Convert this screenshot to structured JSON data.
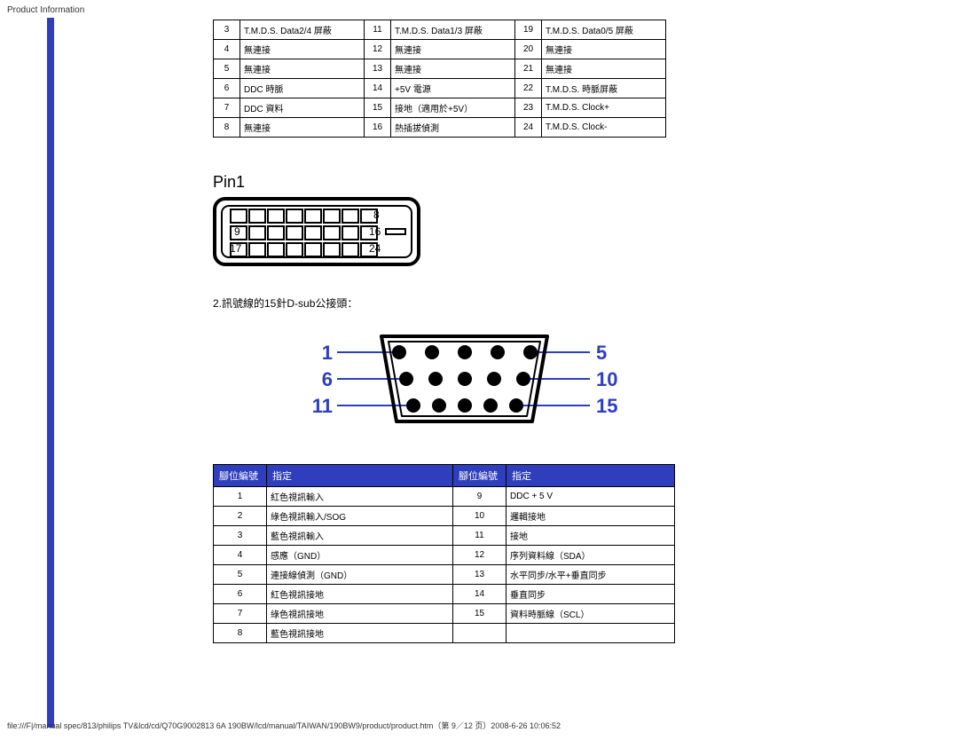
{
  "header": {
    "title": "Product Information"
  },
  "dvi_table": {
    "rows": [
      {
        "a": "3",
        "b": "T.M.D.S. Data2/4 屏蔽",
        "c": "11",
        "d": "T.M.D.S. Data1/3 屏蔽",
        "e": "19",
        "f": "T.M.D.S. Data0/5 屏蔽"
      },
      {
        "a": "4",
        "b": "無連接",
        "c": "12",
        "d": "無連接",
        "e": "20",
        "f": "無連接"
      },
      {
        "a": "5",
        "b": "無連接",
        "c": "13",
        "d": "無連接",
        "e": "21",
        "f": "無連接"
      },
      {
        "a": "6",
        "b": "DDC 時脈",
        "c": "14",
        "d": "+5V 電源",
        "e": "22",
        "f": "T.M.D.S. 時脈屏蔽"
      },
      {
        "a": "7",
        "b": "DDC 資料",
        "c": "15",
        "d": "接地（適用於+5V）",
        "e": "23",
        "f": "T.M.D.S. Clock+"
      },
      {
        "a": "8",
        "b": "無連接",
        "c": "16",
        "d": "熱插拔偵測",
        "e": "24",
        "f": "T.M.D.S. Clock-"
      }
    ]
  },
  "pin1_label": "Pin1",
  "dvi_diagram": {
    "labels": [
      "8",
      "9",
      "16",
      "17",
      "24"
    ]
  },
  "section2_label": "2.訊號線的15針D-sub公接頭：",
  "dsub_diagram": {
    "labels": {
      "left": [
        "1",
        "6",
        "11"
      ],
      "right": [
        "5",
        "10",
        "15"
      ]
    },
    "color": "#2e3ebd"
  },
  "dsub_table": {
    "headers": {
      "h1": "腳位編號",
      "h2": "指定",
      "h3": "腳位編號",
      "h4": "指定"
    },
    "header_bg": "#2e3ebd",
    "rows": [
      {
        "a": "1",
        "b": "紅色視訊輸入",
        "c": "9",
        "d": "DDC + 5 V"
      },
      {
        "a": "2",
        "b": "綠色視訊輸入/SOG",
        "c": "10",
        "d": "邏輯接地"
      },
      {
        "a": "3",
        "b": "藍色視訊輸入",
        "c": "11",
        "d": "接地"
      },
      {
        "a": "4",
        "b": "感應（GND）",
        "c": "12",
        "d": "序列資料線（SDA）"
      },
      {
        "a": "5",
        "b": "連接線偵測（GND）",
        "c": "13",
        "d": "水平同步/水平+垂直同步"
      },
      {
        "a": "6",
        "b": "紅色視訊接地",
        "c": "14",
        "d": "垂直同步"
      },
      {
        "a": "7",
        "b": "綠色視訊接地",
        "c": "15",
        "d": "資料時脈線（SCL）"
      },
      {
        "a": "8",
        "b": "藍色視訊接地",
        "c": "",
        "d": ""
      }
    ]
  },
  "footer": {
    "text": "file:///F|/manual spec/813/philips TV&lcd/cd/Q70G9002813 6A 190BW/lcd/manual/TAIWAN/190BW9/product/product.htm（第 9／12 页）2008-6-26 10:06:52"
  }
}
